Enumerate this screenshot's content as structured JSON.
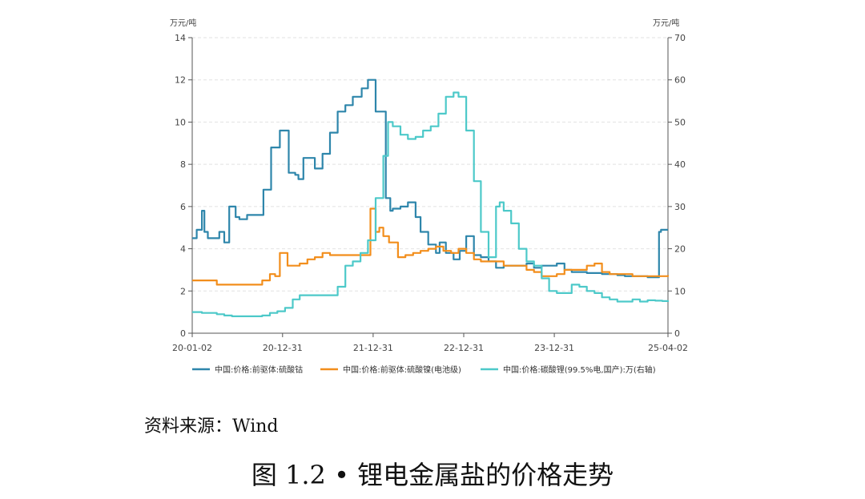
{
  "chart_data": {
    "type": "line",
    "y_unit_left": "万元/吨",
    "y_unit_right": "万元/吨",
    "ylim_left": [
      0,
      14
    ],
    "ylim_right": [
      0,
      70
    ],
    "y_ticks_left": [
      "0",
      "2",
      "4",
      "6",
      "8",
      "10",
      "12",
      "14"
    ],
    "y_ticks_right": [
      "0",
      "10",
      "20",
      "30",
      "40",
      "50",
      "60",
      "70"
    ],
    "x_tick_labels": [
      "20-01-02",
      "20-12-31",
      "21-12-31",
      "22-12-31",
      "23-12-31",
      "25-04-02"
    ],
    "x_tick_dates": [
      "2020-01-02",
      "2020-12-31",
      "2021-12-31",
      "2022-12-31",
      "2023-12-31",
      "2025-04-02"
    ],
    "x_range": [
      "2020-01-02",
      "2025-04-02"
    ],
    "grid": "horizontal dashed",
    "legend_position": "bottom",
    "series": [
      {
        "name": "中国:价格:前驱体:硫酸钴",
        "axis": "left",
        "color": "#2E86AB",
        "x": [
          "2020-01-02",
          "2020-01-20",
          "2020-02-10",
          "2020-02-20",
          "2020-03-05",
          "2020-03-20",
          "2020-04-20",
          "2020-05-10",
          "2020-05-30",
          "2020-06-25",
          "2020-07-10",
          "2020-08-10",
          "2020-09-15",
          "2020-10-15",
          "2020-11-15",
          "2020-12-20",
          "2021-01-25",
          "2021-02-20",
          "2021-03-05",
          "2021-03-25",
          "2021-05-10",
          "2021-06-10",
          "2021-07-10",
          "2021-08-10",
          "2021-09-10",
          "2021-10-10",
          "2021-11-15",
          "2021-12-10",
          "2022-01-10",
          "2022-02-20",
          "2022-03-10",
          "2022-03-20",
          "2022-04-20",
          "2022-05-20",
          "2022-06-20",
          "2022-07-10",
          "2022-08-10",
          "2022-09-10",
          "2022-09-25",
          "2022-10-20",
          "2022-11-20",
          "2022-12-15",
          "2023-01-10",
          "2023-02-10",
          "2023-03-10",
          "2023-04-10",
          "2023-05-10",
          "2023-06-10",
          "2023-07-10",
          "2023-08-10",
          "2023-09-10",
          "2023-10-10",
          "2023-11-10",
          "2023-12-10",
          "2024-01-10",
          "2024-02-10",
          "2024-03-10",
          "2024-04-10",
          "2024-05-10",
          "2024-06-10",
          "2024-07-10",
          "2024-08-10",
          "2024-09-10",
          "2024-10-10",
          "2024-11-10",
          "2024-12-10",
          "2025-01-10",
          "2025-02-10",
          "2025-02-25",
          "2025-03-05",
          "2025-04-02"
        ],
        "values": [
          4.5,
          4.9,
          5.8,
          4.8,
          4.5,
          4.5,
          4.8,
          4.3,
          6.0,
          5.5,
          5.4,
          5.6,
          5.6,
          6.8,
          8.8,
          9.6,
          7.6,
          7.5,
          7.3,
          8.3,
          7.8,
          8.5,
          9.5,
          10.5,
          10.8,
          11.2,
          11.6,
          12.0,
          10.5,
          6.4,
          5.8,
          5.9,
          6.0,
          6.2,
          5.5,
          4.8,
          4.2,
          3.8,
          4.3,
          3.8,
          3.5,
          3.9,
          4.6,
          3.7,
          3.6,
          3.4,
          3.1,
          3.2,
          3.2,
          3.2,
          3.3,
          3.1,
          3.2,
          3.2,
          3.3,
          3.0,
          2.9,
          2.9,
          2.85,
          2.85,
          2.8,
          2.8,
          2.75,
          2.7,
          2.7,
          2.7,
          2.65,
          2.65,
          4.8,
          4.9,
          4.9
        ]
      },
      {
        "name": "中国:价格:前驱体:硫酸镍(电池级)",
        "axis": "left",
        "color": "#F28E1C",
        "x": [
          "2020-01-02",
          "2020-02-10",
          "2020-03-10",
          "2020-04-10",
          "2020-05-10",
          "2020-06-10",
          "2020-07-10",
          "2020-08-10",
          "2020-09-10",
          "2020-10-10",
          "2020-11-10",
          "2020-12-01",
          "2020-12-20",
          "2021-01-20",
          "2021-02-20",
          "2021-03-10",
          "2021-04-10",
          "2021-05-10",
          "2021-06-10",
          "2021-07-10",
          "2021-08-10",
          "2021-09-10",
          "2021-10-10",
          "2021-11-10",
          "2021-12-01",
          "2021-12-10",
          "2021-12-20",
          "2022-01-10",
          "2022-01-25",
          "2022-02-10",
          "2022-03-05",
          "2022-03-15",
          "2022-04-10",
          "2022-05-10",
          "2022-06-10",
          "2022-07-10",
          "2022-08-10",
          "2022-09-10",
          "2022-10-10",
          "2022-11-10",
          "2022-12-10",
          "2023-01-10",
          "2023-02-10",
          "2023-03-10",
          "2023-04-10",
          "2023-05-10",
          "2023-06-10",
          "2023-07-10",
          "2023-08-10",
          "2023-09-10",
          "2023-10-10",
          "2023-11-10",
          "2023-12-10",
          "2024-01-10",
          "2024-02-10",
          "2024-03-10",
          "2024-04-10",
          "2024-05-10",
          "2024-06-10",
          "2024-07-10",
          "2024-08-10",
          "2024-09-10",
          "2024-10-10",
          "2024-11-10",
          "2024-12-10",
          "2025-01-10",
          "2025-02-10",
          "2025-03-10",
          "2025-04-02"
        ],
        "values": [
          2.5,
          2.5,
          2.5,
          2.3,
          2.3,
          2.3,
          2.3,
          2.3,
          2.3,
          2.5,
          2.8,
          2.7,
          3.8,
          3.2,
          3.2,
          3.3,
          3.5,
          3.6,
          3.8,
          3.7,
          3.7,
          3.7,
          3.7,
          3.7,
          3.7,
          3.7,
          5.9,
          4.8,
          5.0,
          4.6,
          4.3,
          4.3,
          3.6,
          3.7,
          3.8,
          3.9,
          4.0,
          4.1,
          3.9,
          3.8,
          4.0,
          3.8,
          3.5,
          3.4,
          3.4,
          3.4,
          3.2,
          3.2,
          3.2,
          3.0,
          2.9,
          2.7,
          2.7,
          2.8,
          3.0,
          3.0,
          3.0,
          3.2,
          3.3,
          2.9,
          2.8,
          2.8,
          2.8,
          2.7,
          2.7,
          2.7,
          2.7,
          2.7,
          2.75
        ]
      },
      {
        "name": "中国:价格:碳酸锂(99.5%电,国产):万(右轴)",
        "axis": "right",
        "color": "#4DC9C9",
        "x": [
          "2020-01-02",
          "2020-02-10",
          "2020-03-10",
          "2020-04-10",
          "2020-05-10",
          "2020-06-10",
          "2020-07-10",
          "2020-08-10",
          "2020-09-10",
          "2020-10-10",
          "2020-11-10",
          "2020-12-10",
          "2021-01-10",
          "2021-02-10",
          "2021-03-10",
          "2021-04-10",
          "2021-05-10",
          "2021-06-10",
          "2021-07-10",
          "2021-08-10",
          "2021-09-10",
          "2021-10-10",
          "2021-11-10",
          "2021-12-10",
          "2022-01-10",
          "2022-02-10",
          "2022-03-01",
          "2022-03-20",
          "2022-04-20",
          "2022-05-20",
          "2022-06-20",
          "2022-07-20",
          "2022-08-20",
          "2022-09-20",
          "2022-10-20",
          "2022-11-20",
          "2022-12-10",
          "2023-01-10",
          "2023-02-10",
          "2023-03-10",
          "2023-04-10",
          "2023-04-20",
          "2023-05-10",
          "2023-05-25",
          "2023-06-10",
          "2023-07-10",
          "2023-08-10",
          "2023-09-10",
          "2023-10-10",
          "2023-11-10",
          "2023-12-10",
          "2024-01-10",
          "2024-02-10",
          "2024-03-10",
          "2024-04-10",
          "2024-05-10",
          "2024-06-10",
          "2024-07-10",
          "2024-08-10",
          "2024-09-10",
          "2024-10-10",
          "2024-11-10",
          "2024-12-10",
          "2025-01-10",
          "2025-02-10",
          "2025-03-10",
          "2025-04-02"
        ],
        "values": [
          5.0,
          4.8,
          4.8,
          4.5,
          4.2,
          4.0,
          4.0,
          4.0,
          4.0,
          4.2,
          4.8,
          5.2,
          6.0,
          8.0,
          9.0,
          9.0,
          9.0,
          9.0,
          9.0,
          11.0,
          16.0,
          17.0,
          19.0,
          22.0,
          32.0,
          42.0,
          50.0,
          49.0,
          47.0,
          46.0,
          46.5,
          48.0,
          49.0,
          52.0,
          56.0,
          57.0,
          56.0,
          48.0,
          36.0,
          24.0,
          18.0,
          18.0,
          30.0,
          31.0,
          29.0,
          26.0,
          20.0,
          17.0,
          16.0,
          13.0,
          10.0,
          9.5,
          9.5,
          11.5,
          11.0,
          10.0,
          9.5,
          8.5,
          8.0,
          7.5,
          7.5,
          8.0,
          7.5,
          7.8,
          7.7,
          7.6,
          7.4
        ]
      }
    ]
  },
  "legend": {
    "cobalt": "中国:价格:前驱体:硫酸钴",
    "nickel": "中国:价格:前驱体:硫酸镍(电池级)",
    "lithium": "中国:价格:碳酸锂(99.5%电,国产):万(右轴)"
  },
  "source_text": "资料来源：Wind",
  "caption_text": "图 1.2 • 锂电金属盐的价格走势"
}
